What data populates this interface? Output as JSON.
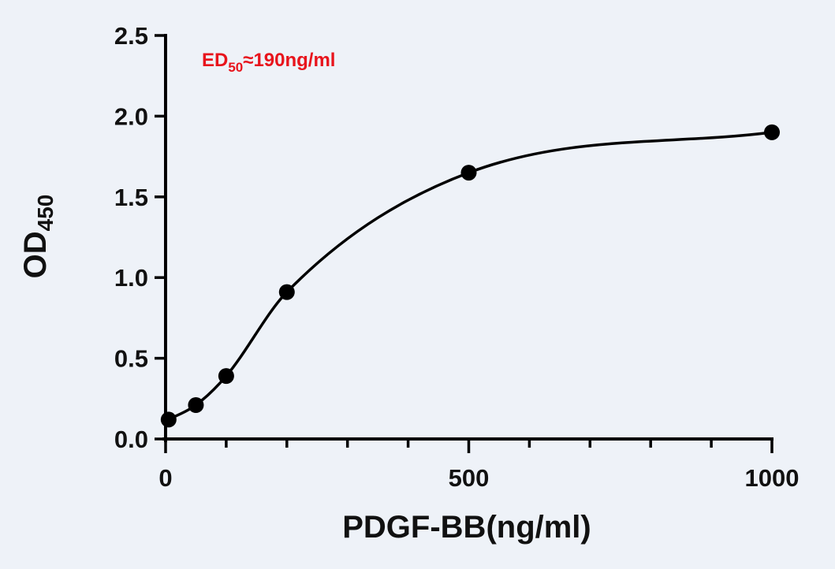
{
  "chart_data": {
    "type": "scatter",
    "xlabel": "PDGF-BB(ng/ml)",
    "ylabel": {
      "main": "OD",
      "sub": "450"
    },
    "annotation": {
      "main": "ED",
      "sub": "50",
      "rest": "≈190ng/ml",
      "color": "#e8141c"
    },
    "xlim": [
      0,
      1000
    ],
    "ylim": [
      0,
      2.5
    ],
    "x_ticks": [
      0,
      500,
      1000
    ],
    "x_tick_labels": [
      "0",
      "500",
      "1000"
    ],
    "x_minor_ticks": [
      100,
      200,
      300,
      400,
      600,
      700,
      800,
      900
    ],
    "y_ticks": [
      0,
      0.5,
      1.0,
      1.5,
      2.0,
      2.5
    ],
    "y_tick_labels": [
      "0.0",
      "0.5",
      "1.0",
      "1.5",
      "2.0",
      "2.5"
    ],
    "grid": false,
    "series": [
      {
        "x": [
          5,
          50,
          100,
          200,
          500,
          1000
        ],
        "y": [
          0.12,
          0.21,
          0.39,
          0.91,
          1.65,
          1.9
        ],
        "fit": "sigmoidal curve",
        "color": "#000000"
      }
    ]
  }
}
